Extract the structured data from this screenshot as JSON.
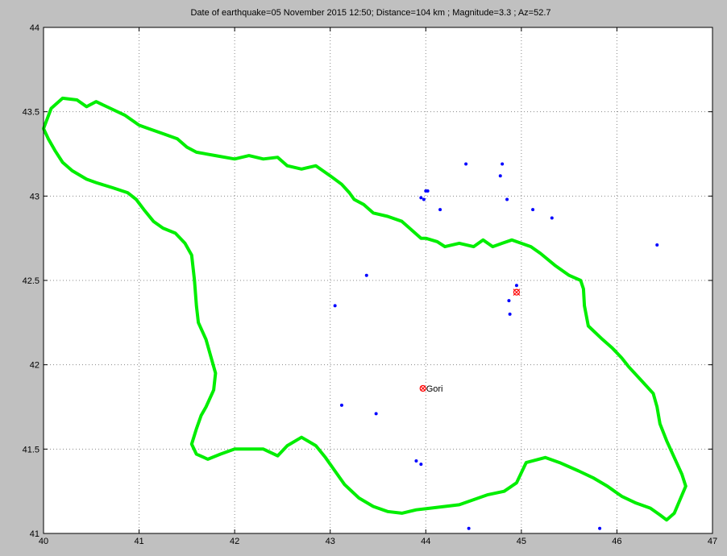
{
  "chart_data": {
    "type": "scatter",
    "title": "Date of earthquake=05 November 2015 12:50; Distance=104 km ; Magnitude=3.3 ; Az=52.7",
    "xlabel": "",
    "ylabel": "",
    "xlim": [
      40,
      47
    ],
    "ylim": [
      41,
      44
    ],
    "x_ticks": [
      40,
      41,
      42,
      43,
      44,
      45,
      46,
      47
    ],
    "y_ticks": [
      41,
      41.5,
      42,
      42.5,
      43,
      43.5,
      44
    ],
    "x_tick_labels": [
      "40",
      "41",
      "42",
      "43",
      "44",
      "45",
      "46",
      "47"
    ],
    "y_tick_labels": [
      "41",
      "41.5",
      "42",
      "42.5",
      "43",
      "43.5",
      "44"
    ],
    "grid": true,
    "colors": {
      "figure_bg": "#c0c0c0",
      "axes_bg": "#ffffff",
      "boundary": "#00ee00",
      "events": "#0000ff",
      "epicenter": "#ff0000",
      "station": "#ff0000",
      "grid": "#888888"
    },
    "boundary": [
      [
        40.0,
        43.4
      ],
      [
        40.08,
        43.52
      ],
      [
        40.2,
        43.58
      ],
      [
        40.35,
        43.57
      ],
      [
        40.45,
        43.53
      ],
      [
        40.55,
        43.56
      ],
      [
        40.7,
        43.52
      ],
      [
        40.85,
        43.48
      ],
      [
        41.0,
        43.42
      ],
      [
        41.1,
        43.4
      ],
      [
        41.25,
        43.37
      ],
      [
        41.4,
        43.34
      ],
      [
        41.5,
        43.29
      ],
      [
        41.6,
        43.26
      ],
      [
        41.8,
        43.24
      ],
      [
        42.0,
        43.22
      ],
      [
        42.15,
        43.24
      ],
      [
        42.3,
        43.22
      ],
      [
        42.45,
        43.23
      ],
      [
        42.55,
        43.18
      ],
      [
        42.7,
        43.16
      ],
      [
        42.85,
        43.18
      ],
      [
        43.0,
        43.12
      ],
      [
        43.12,
        43.07
      ],
      [
        43.2,
        43.02
      ],
      [
        43.25,
        42.98
      ],
      [
        43.35,
        42.95
      ],
      [
        43.45,
        42.9
      ],
      [
        43.6,
        42.88
      ],
      [
        43.75,
        42.85
      ],
      [
        43.85,
        42.8
      ],
      [
        43.95,
        42.75
      ],
      [
        44.0,
        42.75
      ],
      [
        44.12,
        42.73
      ],
      [
        44.2,
        42.7
      ],
      [
        44.35,
        42.72
      ],
      [
        44.5,
        42.7
      ],
      [
        44.6,
        42.74
      ],
      [
        44.7,
        42.7
      ],
      [
        44.8,
        42.72
      ],
      [
        44.9,
        42.74
      ],
      [
        45.1,
        42.7
      ],
      [
        45.2,
        42.66
      ],
      [
        45.35,
        42.59
      ],
      [
        45.5,
        42.53
      ],
      [
        45.62,
        42.5
      ],
      [
        45.65,
        42.45
      ],
      [
        45.66,
        42.35
      ],
      [
        45.7,
        42.23
      ],
      [
        45.85,
        42.15
      ],
      [
        45.95,
        42.1
      ],
      [
        46.05,
        42.04
      ],
      [
        46.12,
        41.99
      ],
      [
        46.25,
        41.91
      ],
      [
        46.38,
        41.83
      ],
      [
        46.42,
        41.75
      ],
      [
        46.45,
        41.65
      ],
      [
        46.52,
        41.55
      ],
      [
        46.6,
        41.45
      ],
      [
        46.68,
        41.35
      ],
      [
        46.72,
        41.28
      ],
      [
        46.66,
        41.2
      ],
      [
        46.6,
        41.12
      ],
      [
        46.52,
        41.08
      ],
      [
        46.45,
        41.11
      ],
      [
        46.35,
        41.15
      ],
      [
        46.2,
        41.18
      ],
      [
        46.05,
        41.22
      ],
      [
        45.9,
        41.28
      ],
      [
        45.75,
        41.33
      ],
      [
        45.6,
        41.37
      ],
      [
        45.4,
        41.42
      ],
      [
        45.25,
        41.45
      ],
      [
        45.05,
        41.42
      ],
      [
        44.95,
        41.3
      ],
      [
        44.82,
        41.25
      ],
      [
        44.65,
        41.23
      ],
      [
        44.5,
        41.2
      ],
      [
        44.35,
        41.17
      ],
      [
        44.2,
        41.16
      ],
      [
        44.05,
        41.15
      ],
      [
        43.9,
        41.14
      ],
      [
        43.75,
        41.12
      ],
      [
        43.6,
        41.13
      ],
      [
        43.45,
        41.16
      ],
      [
        43.3,
        41.21
      ],
      [
        43.15,
        41.29
      ],
      [
        43.05,
        41.37
      ],
      [
        42.95,
        41.45
      ],
      [
        42.85,
        41.52
      ],
      [
        42.7,
        41.57
      ],
      [
        42.55,
        41.52
      ],
      [
        42.45,
        41.46
      ],
      [
        42.3,
        41.5
      ],
      [
        42.15,
        41.5
      ],
      [
        42.0,
        41.5
      ],
      [
        41.85,
        41.47
      ],
      [
        41.72,
        41.44
      ],
      [
        41.6,
        41.47
      ],
      [
        41.55,
        41.53
      ],
      [
        41.6,
        41.62
      ],
      [
        41.65,
        41.7
      ],
      [
        41.7,
        41.75
      ],
      [
        41.78,
        41.85
      ],
      [
        41.8,
        41.95
      ],
      [
        41.75,
        42.05
      ],
      [
        41.7,
        42.15
      ],
      [
        41.62,
        42.25
      ],
      [
        41.6,
        42.35
      ],
      [
        41.58,
        42.5
      ],
      [
        41.55,
        42.65
      ],
      [
        41.48,
        42.72
      ],
      [
        41.38,
        42.78
      ],
      [
        41.25,
        42.81
      ],
      [
        41.15,
        42.85
      ],
      [
        41.05,
        42.92
      ],
      [
        40.97,
        42.98
      ],
      [
        40.88,
        43.02
      ],
      [
        40.72,
        43.05
      ],
      [
        40.55,
        43.08
      ],
      [
        40.45,
        43.1
      ],
      [
        40.3,
        43.15
      ],
      [
        40.2,
        43.2
      ],
      [
        40.12,
        43.27
      ],
      [
        40.05,
        43.34
      ],
      [
        40.0,
        43.4
      ]
    ],
    "events": [
      [
        43.95,
        42.99
      ],
      [
        44.0,
        43.03
      ],
      [
        43.98,
        42.98
      ],
      [
        44.02,
        43.03
      ],
      [
        44.15,
        42.92
      ],
      [
        44.42,
        43.19
      ],
      [
        44.8,
        43.19
      ],
      [
        44.78,
        43.12
      ],
      [
        44.85,
        42.98
      ],
      [
        45.12,
        42.92
      ],
      [
        45.32,
        42.87
      ],
      [
        46.42,
        42.71
      ],
      [
        43.38,
        42.53
      ],
      [
        43.05,
        42.35
      ],
      [
        44.95,
        42.47
      ],
      [
        44.87,
        42.38
      ],
      [
        44.88,
        42.3
      ],
      [
        43.12,
        41.76
      ],
      [
        43.48,
        41.71
      ],
      [
        43.9,
        41.43
      ],
      [
        43.95,
        41.41
      ],
      [
        44.45,
        41.03
      ],
      [
        45.82,
        41.03
      ]
    ],
    "epicenter": [
      44.95,
      42.43
    ],
    "station": {
      "name": "Gori",
      "coord": [
        43.97,
        41.86
      ]
    }
  }
}
